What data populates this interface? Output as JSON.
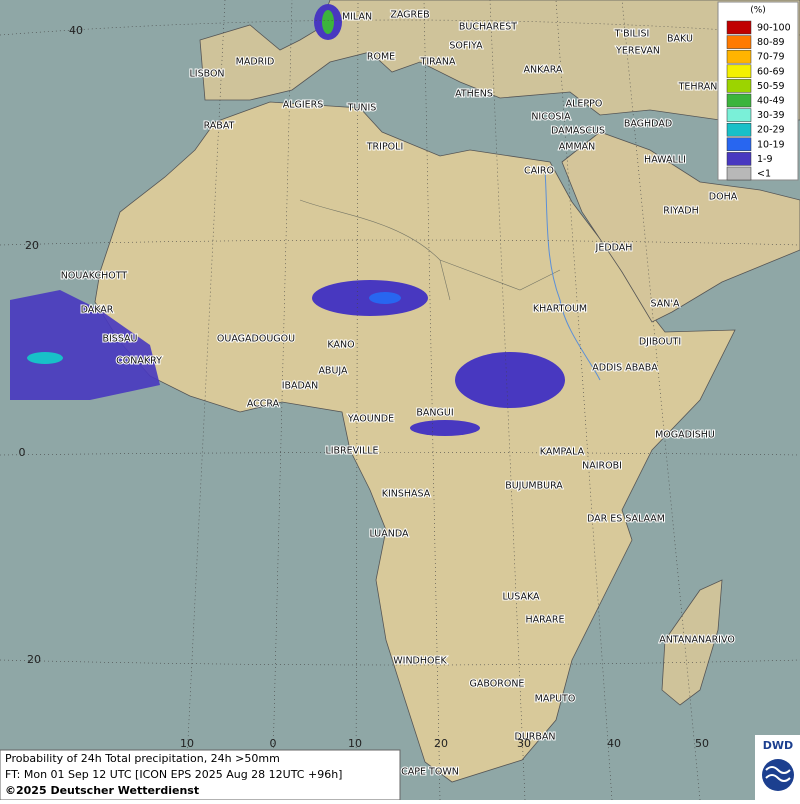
{
  "cities": [
    "MILAN",
    "ZAGREB",
    "BUCHAREST",
    "MADRID",
    "ROME",
    "SOFIYA",
    "TIRANA",
    "LISBON",
    "ANKARA",
    "ATHENS",
    "ALGIERS",
    "TUNIS",
    "RABAT",
    "NICOSIA",
    "ALEPPO",
    "BAGHDAD",
    "DAMASCUS",
    "AMMAN",
    "TRIPOLI",
    "CAIRO",
    "T'BILISI",
    "YEREVAN",
    "BAKU",
    "TEHRAN",
    "HAWALLI",
    "DOHA",
    "RIYADH",
    "JEDDAH",
    "SAN'A",
    "DJIBOUTI",
    "ADDIS ABABA",
    "KHARTOUM",
    "NOUAKCHOTT",
    "DAKAR",
    "BISSAU",
    "CONAKRY",
    "OUAGADOUGOU",
    "KANO",
    "ABUJA",
    "IBADAN",
    "ACCRA",
    "YAOUNDE",
    "BANGUI",
    "LIBREVILLE",
    "MOGADISHU",
    "KAMPALA",
    "NAIROBI",
    "KINSHASA",
    "BUJUMBURA",
    "DAR ES SALAAM",
    "LUANDA",
    "LUSAKA",
    "HARARE",
    "ANTANANARIVO",
    "WINDHOEK",
    "GABORONE",
    "MAPUTO",
    "DURBAN",
    "CAPE TOWN"
  ],
  "latitude_labels": [
    "40",
    "20",
    "0",
    "20"
  ],
  "longitude_labels": [
    "10",
    "0",
    "10",
    "20",
    "30",
    "40",
    "50"
  ],
  "legend": {
    "title": "(%)",
    "items": [
      {
        "label": "90-100",
        "color": "#c00000"
      },
      {
        "label": "80-89",
        "color": "#ff7a00"
      },
      {
        "label": "70-79",
        "color": "#ffb400"
      },
      {
        "label": "60-69",
        "color": "#f4f000"
      },
      {
        "label": "50-59",
        "color": "#9cd400"
      },
      {
        "label": "40-49",
        "color": "#3cb43c"
      },
      {
        "label": "30-39",
        "color": "#7af0d8"
      },
      {
        "label": "20-29",
        "color": "#18c0c8"
      },
      {
        "label": "10-19",
        "color": "#2866f0"
      },
      {
        "label": "1-9",
        "color": "#4838c0"
      },
      {
        "label": "<1",
        "color": "#b8b8b8"
      }
    ]
  },
  "caption": [
    "Probability of 24h Total precipitation, 24h >50mm",
    "FT: Mon 01 Sep 12 UTC [ICON EPS 2025 Aug 28 12UTC +96h]",
    "©2025 Deutscher Wetterdienst"
  ],
  "logo": "DWD"
}
